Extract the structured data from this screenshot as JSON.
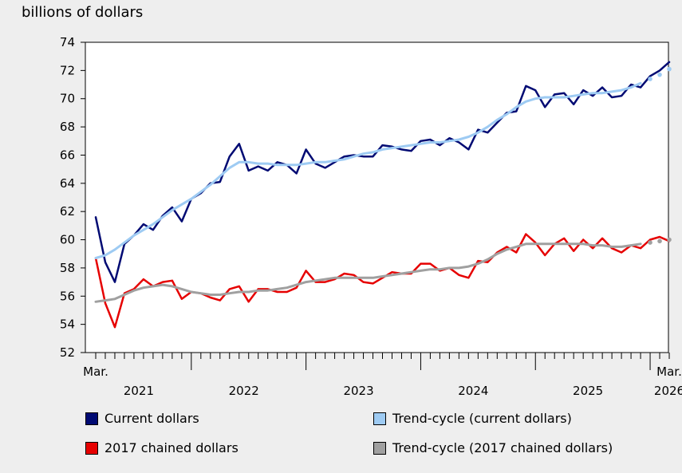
{
  "chart_data": {
    "type": "line",
    "ylabel": "billions of dollars",
    "ylim": [
      52,
      74
    ],
    "yticks": [
      52,
      54,
      56,
      58,
      60,
      62,
      64,
      66,
      68,
      70,
      72,
      74
    ],
    "x_range": [
      "2021-03",
      "2026-03"
    ],
    "start_month_label": "Mar.",
    "end_month_label": "Mar.",
    "year_labels": [
      "2021",
      "2022",
      "2023",
      "2024",
      "2025",
      "2026"
    ],
    "grid": false,
    "legend_position": "bottom",
    "series": [
      {
        "name": "Current dollars",
        "color": "#000a73",
        "style": "line",
        "values": [
          61.6,
          58.4,
          57.0,
          59.7,
          60.3,
          61.1,
          60.7,
          61.7,
          62.3,
          61.3,
          62.9,
          63.3,
          64.0,
          64.1,
          65.9,
          66.8,
          64.9,
          65.2,
          64.9,
          65.5,
          65.3,
          64.7,
          66.4,
          65.4,
          65.1,
          65.5,
          65.9,
          66.0,
          65.9,
          65.9,
          66.7,
          66.6,
          66.4,
          66.3,
          67.0,
          67.1,
          66.7,
          67.2,
          66.9,
          66.4,
          67.8,
          67.6,
          68.3,
          69.0,
          69.1,
          70.9,
          70.6,
          69.4,
          70.3,
          70.4,
          69.6,
          70.6,
          70.2,
          70.8,
          70.1,
          70.2,
          71.0,
          70.8,
          71.6,
          72.0,
          72.6
        ]
      },
      {
        "name": "Trend-cycle (current dollars)",
        "color": "#9ecbf3",
        "style": "line",
        "dotted_tail_from_index": 57,
        "values": [
          58.7,
          58.9,
          59.3,
          59.8,
          60.3,
          60.7,
          61.1,
          61.6,
          62.1,
          62.5,
          62.9,
          63.4,
          63.9,
          64.5,
          65.1,
          65.5,
          65.5,
          65.4,
          65.4,
          65.3,
          65.3,
          65.3,
          65.4,
          65.5,
          65.5,
          65.6,
          65.7,
          65.9,
          66.1,
          66.2,
          66.4,
          66.5,
          66.6,
          66.7,
          66.8,
          66.9,
          66.9,
          67.0,
          67.1,
          67.3,
          67.6,
          68.0,
          68.5,
          68.9,
          69.4,
          69.8,
          70.0,
          70.1,
          70.1,
          70.1,
          70.2,
          70.3,
          70.4,
          70.4,
          70.5,
          70.6,
          70.8,
          71.1,
          71.4,
          71.7,
          72.1
        ]
      },
      {
        "name": "2017 chained dollars",
        "color": "#e60000",
        "style": "line",
        "values": [
          58.7,
          55.5,
          53.8,
          56.2,
          56.5,
          57.2,
          56.7,
          57.0,
          57.1,
          55.8,
          56.3,
          56.2,
          55.9,
          55.7,
          56.5,
          56.7,
          55.6,
          56.5,
          56.5,
          56.3,
          56.3,
          56.6,
          57.8,
          57.0,
          57.0,
          57.2,
          57.6,
          57.5,
          57.0,
          56.9,
          57.3,
          57.7,
          57.6,
          57.6,
          58.3,
          58.3,
          57.8,
          58.0,
          57.5,
          57.3,
          58.5,
          58.4,
          59.1,
          59.5,
          59.1,
          60.4,
          59.8,
          58.9,
          59.7,
          60.1,
          59.2,
          60.0,
          59.4,
          60.1,
          59.4,
          59.1,
          59.6,
          59.4,
          60.0,
          60.2,
          59.9
        ]
      },
      {
        "name": "Trend-cycle (2017 chained dollars)",
        "color": "#a0a0a0",
        "style": "line",
        "dotted_tail_from_index": 57,
        "values": [
          55.6,
          55.7,
          55.8,
          56.1,
          56.4,
          56.6,
          56.7,
          56.8,
          56.7,
          56.5,
          56.3,
          56.2,
          56.1,
          56.1,
          56.2,
          56.3,
          56.3,
          56.4,
          56.4,
          56.5,
          56.6,
          56.8,
          57.0,
          57.1,
          57.2,
          57.3,
          57.3,
          57.3,
          57.3,
          57.3,
          57.4,
          57.5,
          57.6,
          57.7,
          57.8,
          57.9,
          57.9,
          58.0,
          58.0,
          58.1,
          58.3,
          58.6,
          59.0,
          59.3,
          59.5,
          59.7,
          59.7,
          59.7,
          59.7,
          59.7,
          59.7,
          59.7,
          59.6,
          59.6,
          59.5,
          59.5,
          59.6,
          59.7,
          59.8,
          59.9,
          60.0
        ]
      }
    ]
  }
}
